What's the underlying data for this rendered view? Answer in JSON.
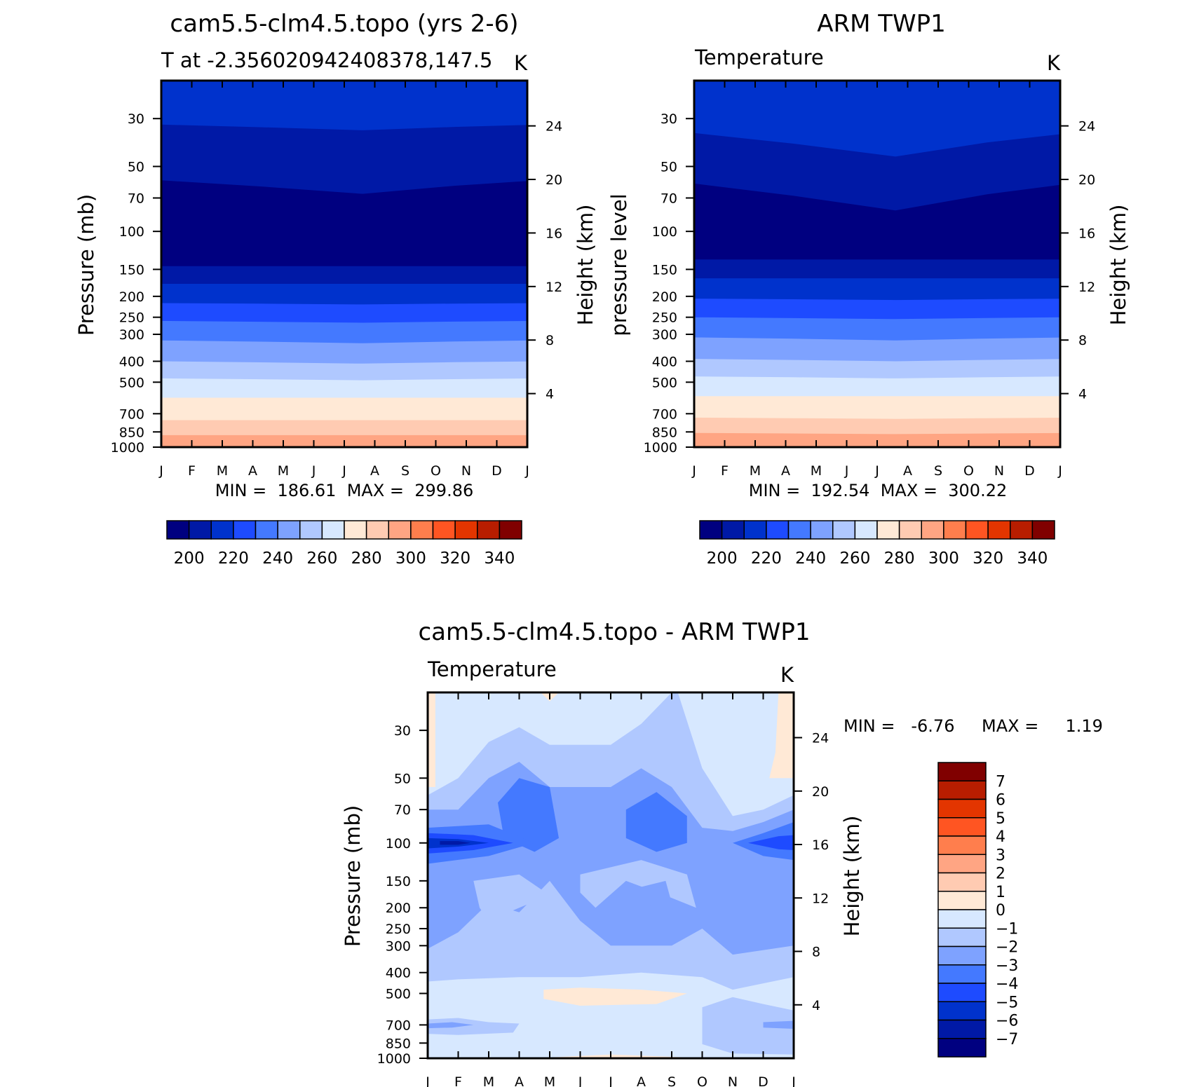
{
  "figure": {
    "panel_top_left": {
      "title": "cam5.5-clm4.5.topo (yrs 2-6)",
      "subtitle_left": "T at -2.356020942408378,147.5",
      "subtitle_right": "K",
      "ylabel": "Pressure (mb)",
      "ylabel_right": "Height (km)",
      "stats": "MIN =  186.61  MAX =  299.86"
    },
    "panel_top_right": {
      "title": "ARM TWP1",
      "subtitle_left": "Temperature",
      "subtitle_right": "K",
      "ylabel": "pressure level",
      "ylabel_right": "Height (km)",
      "stats": "MIN =  192.54  MAX =  300.22"
    },
    "panel_bottom": {
      "title": "cam5.5-clm4.5.topo - ARM TWP1",
      "subtitle_left": "Temperature",
      "subtitle_right": "K",
      "ylabel": "Pressure (mb)",
      "ylabel_right": "Height (km)",
      "stats_min": "MIN =   -6.76",
      "stats_max": "MAX =     1.19"
    }
  },
  "chart_data": [
    {
      "type": "heatmap",
      "title": "cam5.5-clm4.5.topo (yrs 2-6)",
      "subtitle": "T at -2.356020942408378,147.5",
      "units": "K",
      "x_ticks": [
        "J",
        "F",
        "M",
        "A",
        "M",
        "J",
        "J",
        "A",
        "S",
        "O",
        "N",
        "D",
        "J"
      ],
      "y_ticks_pressure": [
        30,
        50,
        70,
        100,
        150,
        200,
        250,
        300,
        400,
        500,
        700,
        850,
        1000
      ],
      "y_ticks_height_km": [
        24,
        20,
        16,
        12,
        8,
        4
      ],
      "ylabel": "Pressure (mb)",
      "ylabel_right": "Height (km)",
      "ylim": [
        20,
        1000
      ],
      "y_scale": "log (reversed)",
      "min": 186.61,
      "max": 299.86,
      "colorbar_ticks": [
        200,
        220,
        240,
        260,
        280,
        300,
        320,
        340
      ],
      "contour_boundaries_mb": [
        {
          "level": 210,
          "jan": 32,
          "jul": 34
        },
        {
          "level": 200,
          "jan": 58,
          "jul": 67
        },
        {
          "level": 190,
          "jan": 145,
          "jul": 145
        },
        {
          "level": 200,
          "jan": 175,
          "jul": 175
        },
        {
          "level": 210,
          "jan": 215,
          "jul": 218
        },
        {
          "level": 220,
          "jan": 260,
          "jul": 265
        },
        {
          "level": 230,
          "jan": 320,
          "jul": 330
        },
        {
          "level": 240,
          "jan": 400,
          "jul": 410
        },
        {
          "level": 250,
          "jan": 480,
          "jul": 490
        },
        {
          "level": 260,
          "jan": 590,
          "jul": 590
        },
        {
          "level": 270,
          "jan": 750,
          "jul": 750
        },
        {
          "level": 280,
          "jan": 880,
          "jul": 880
        }
      ]
    },
    {
      "type": "heatmap",
      "title": "ARM TWP1",
      "subtitle": "Temperature",
      "units": "K",
      "x_ticks": [
        "J",
        "F",
        "M",
        "A",
        "M",
        "J",
        "J",
        "A",
        "S",
        "O",
        "N",
        "D",
        "J"
      ],
      "y_ticks_pressure": [
        30,
        50,
        70,
        100,
        150,
        200,
        250,
        300,
        400,
        500,
        700,
        850,
        1000
      ],
      "y_ticks_height_km": [
        24,
        20,
        16,
        12,
        8,
        4
      ],
      "ylabel": "pressure level",
      "ylabel_right": "Height (km)",
      "ylim": [
        20,
        1000
      ],
      "y_scale": "log (reversed)",
      "min": 192.54,
      "max": 300.22,
      "colorbar_ticks": [
        200,
        220,
        240,
        260,
        280,
        300,
        320,
        340
      ],
      "contour_boundaries_mb": [
        {
          "level": 210,
          "jan": 35,
          "aug": 45
        },
        {
          "level": 200,
          "jan": 60,
          "aug": 80
        },
        {
          "level": 190,
          "jan": 135,
          "aug": 135
        },
        {
          "level": 200,
          "jan": 165,
          "aug": 165
        },
        {
          "level": 210,
          "jan": 205,
          "aug": 208
        },
        {
          "level": 220,
          "jan": 250,
          "aug": 255
        },
        {
          "level": 230,
          "jan": 310,
          "aug": 320
        },
        {
          "level": 240,
          "jan": 390,
          "aug": 400
        },
        {
          "level": 250,
          "jan": 470,
          "aug": 480
        },
        {
          "level": 260,
          "jan": 580,
          "aug": 580
        },
        {
          "level": 270,
          "jan": 730,
          "aug": 740
        },
        {
          "level": 280,
          "jan": 860,
          "aug": 870
        }
      ]
    },
    {
      "type": "heatmap",
      "title": "cam5.5-clm4.5.topo - ARM TWP1",
      "subtitle": "Temperature",
      "units": "K",
      "x_ticks": [
        "J",
        "F",
        "M",
        "A",
        "M",
        "J",
        "J",
        "A",
        "S",
        "O",
        "N",
        "D",
        "J"
      ],
      "y_ticks_pressure": [
        30,
        50,
        70,
        100,
        150,
        200,
        250,
        300,
        400,
        500,
        700,
        850,
        1000
      ],
      "y_ticks_height_km": [
        24,
        20,
        16,
        12,
        8,
        4
      ],
      "ylabel": "Pressure (mb)",
      "ylabel_right": "Height (km)",
      "ylim": [
        20,
        1000
      ],
      "y_scale": "log (reversed)",
      "min": -6.76,
      "max": 1.19,
      "colorbar_ticks": [
        7,
        6,
        5,
        4,
        3,
        2,
        1,
        0,
        -1,
        -2,
        -3,
        -4,
        -5,
        -6,
        -7
      ],
      "features": [
        {
          "value": -5.5,
          "months": "J-F",
          "pressure_mb": 100
        },
        {
          "value": -3.5,
          "months": "M-A",
          "pressure_mb": 60
        },
        {
          "value": -3.5,
          "months": "J-A",
          "pressure_mb": 80
        },
        {
          "value": -4.5,
          "months": "N-J",
          "pressure_mb": 100
        },
        {
          "value": 0.5,
          "months": "A-J",
          "pressure_mb": 550
        },
        {
          "value": 0.5,
          "months": "D-J",
          "pressure_mb": 35
        }
      ]
    }
  ],
  "colors": {
    "temperature_scale": [
      "#000080",
      "#0019a6",
      "#0032cc",
      "#1e4bff",
      "#4479ff",
      "#7ea2ff",
      "#b0c8ff",
      "#d7e8ff",
      "#ffe9d6",
      "#ffcbb2",
      "#ffa583",
      "#ff7e4d",
      "#ff5522",
      "#e33500",
      "#b81d00",
      "#800000"
    ],
    "difference_scale": [
      "#800000",
      "#b81d00",
      "#e33500",
      "#ff5522",
      "#ff7e4d",
      "#ffa583",
      "#ffcbb2",
      "#ffe9d6",
      "#d7e8ff",
      "#b0c8ff",
      "#7ea2ff",
      "#4479ff",
      "#1e4bff",
      "#0032cc",
      "#0019a6",
      "#000080"
    ]
  }
}
